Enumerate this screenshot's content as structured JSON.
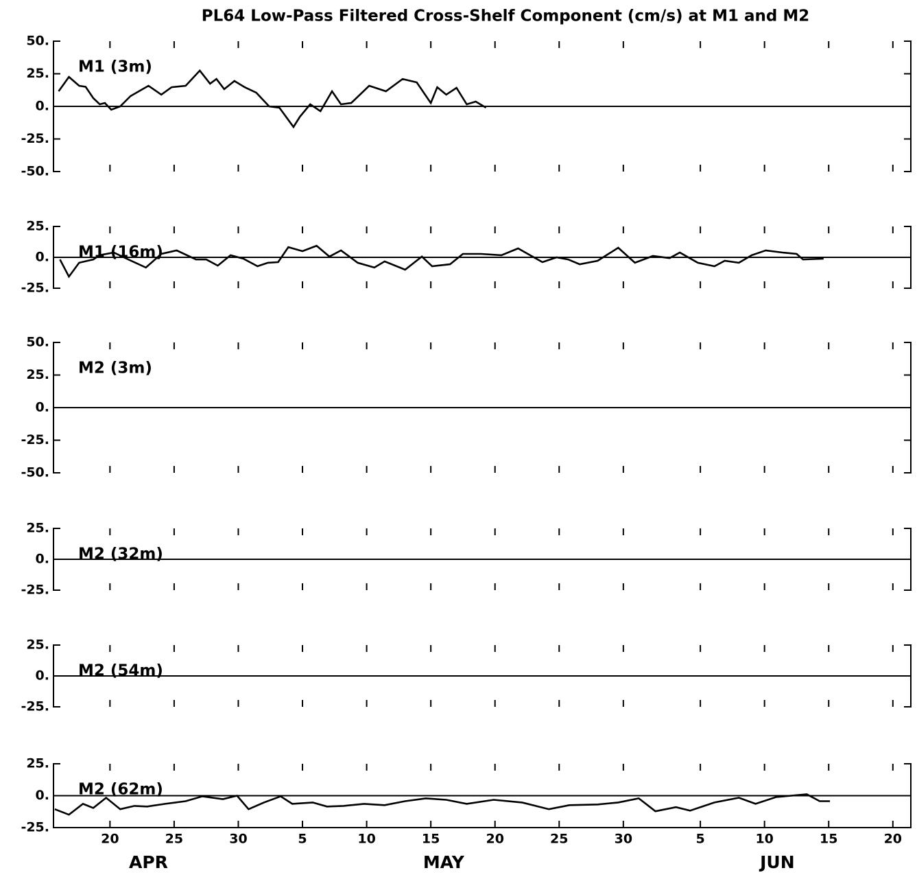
{
  "title": "PL64 Low-Pass Filtered Cross-Shelf Component (cm/s) at M1 and M2",
  "x_axis": {
    "xlim": [
      15.6,
      82.4
    ],
    "xticks": [
      20,
      25,
      30,
      {
        "value": 35,
        "label": "5"
      },
      {
        "value": 40,
        "label": "10"
      },
      {
        "value": 45,
        "label": "15"
      },
      {
        "value": 50,
        "label": "20"
      },
      {
        "value": 55,
        "label": "25"
      },
      {
        "value": 60,
        "label": "30"
      },
      {
        "value": 66,
        "label": "5"
      },
      {
        "value": 71,
        "label": "10"
      },
      {
        "value": 76,
        "label": "15"
      },
      {
        "value": 81,
        "label": "20"
      }
    ],
    "month_labels": [
      {
        "text": "APR",
        "x": 23
      },
      {
        "text": "MAY",
        "x": 46
      },
      {
        "text": "JUN",
        "x": 72
      }
    ]
  },
  "chart_data": [
    {
      "type": "line",
      "title": "M1 (3m)",
      "color": "#000000",
      "ylim": [
        -50,
        50
      ],
      "yticks": [
        {
          "value": 50,
          "label": "50."
        },
        {
          "value": 25,
          "label": "25."
        },
        {
          "value": 0,
          "label": "0."
        },
        {
          "value": -25,
          "label": "-25."
        },
        {
          "value": -50,
          "label": "-50."
        }
      ],
      "x": [
        16.0,
        16.8,
        17.6,
        18.1,
        18.7,
        19.2,
        19.6,
        20.1,
        20.8,
        21.6,
        23.0,
        24.0,
        24.8,
        25.9,
        27.0,
        27.8,
        28.3,
        28.9,
        29.7,
        30.5,
        31.4,
        32.4,
        33.2,
        34.3,
        34.8,
        35.6,
        36.4,
        37.3,
        38.0,
        38.8,
        40.2,
        41.5,
        42.8,
        43.9,
        45.0,
        45.5,
        46.2,
        47.0,
        47.8,
        48.5,
        49.3
      ],
      "values": [
        11.6,
        22.6,
        15.8,
        15,
        6.3,
        1.6,
        2.6,
        -2.6,
        0,
        7.9,
        15.8,
        9,
        14.7,
        15.8,
        27.4,
        17.4,
        21,
        13.2,
        19.5,
        14.7,
        10.5,
        0,
        -1,
        -15.8,
        -7.9,
        1.6,
        -3.7,
        11.6,
        1.6,
        2.6,
        15.8,
        11.6,
        21,
        18.4,
        2.6,
        14.7,
        9,
        14.2,
        1.6,
        3.7,
        -1
      ]
    },
    {
      "type": "line",
      "title": "M1 (16m)",
      "color": "#000000",
      "ylim": [
        -25,
        25
      ],
      "yticks": [
        {
          "value": 25,
          "label": "25."
        },
        {
          "value": 0,
          "label": "0."
        },
        {
          "value": -25,
          "label": "-25."
        }
      ],
      "x": [
        16.1,
        16.8,
        17.6,
        18.7,
        19.2,
        20.3,
        21.3,
        22.8,
        24.0,
        25.2,
        26.7,
        27.5,
        28.4,
        29.4,
        30.4,
        31.5,
        32.3,
        33.1,
        33.9,
        35.0,
        36.1,
        37.1,
        38.0,
        39.3,
        40.6,
        41.4,
        43.0,
        44.3,
        45.1,
        46.5,
        47.5,
        48.9,
        50.5,
        51.8,
        53.7,
        54.8,
        55.7,
        56.6,
        58.0,
        59.6,
        60.9,
        62.3,
        63.6,
        64.4,
        65.8,
        67.1,
        67.9,
        69.0,
        70.0,
        71.1,
        72.4,
        73.5,
        74.0,
        75.6
      ],
      "values": [
        -1.7,
        -15.6,
        -4.4,
        -1.7,
        1.7,
        3.9,
        -1.1,
        -8.3,
        2.8,
        5.6,
        -1.7,
        -1.7,
        -6.7,
        1.7,
        -1.1,
        -7.2,
        -4.4,
        -3.9,
        8.3,
        5,
        9.4,
        0.6,
        5.6,
        -4.4,
        -8.3,
        -3.3,
        -10,
        0.6,
        -7.2,
        -5.6,
        2.8,
        2.8,
        1.7,
        7.2,
        -3.9,
        0,
        -1.7,
        -5.6,
        -2.8,
        7.8,
        -4.4,
        1.1,
        -0.6,
        3.9,
        -4.4,
        -7.2,
        -2.8,
        -4.4,
        1.7,
        5.6,
        3.9,
        2.8,
        -1.7,
        -1.1
      ]
    },
    {
      "type": "line",
      "title": "M2 (3m)",
      "color": "#000000",
      "ylim": [
        -50,
        50
      ],
      "yticks": [
        {
          "value": 50,
          "label": "50."
        },
        {
          "value": 25,
          "label": "25."
        },
        {
          "value": 0,
          "label": "0."
        },
        {
          "value": -25,
          "label": "-25."
        },
        {
          "value": -50,
          "label": "-50."
        }
      ],
      "x": [],
      "values": []
    },
    {
      "type": "line",
      "title": "M2 (32m)",
      "color": "#000000",
      "ylim": [
        -25,
        25
      ],
      "yticks": [
        {
          "value": 25,
          "label": "25."
        },
        {
          "value": 0,
          "label": "0."
        },
        {
          "value": -25,
          "label": "-25."
        }
      ],
      "x": [],
      "values": []
    },
    {
      "type": "line",
      "title": "M2 (54m)",
      "color": "#000000",
      "ylim": [
        -25,
        25
      ],
      "yticks": [
        {
          "value": 25,
          "label": "25."
        },
        {
          "value": 0,
          "label": "0."
        },
        {
          "value": -25,
          "label": "-25."
        }
      ],
      "x": [],
      "values": []
    },
    {
      "type": "line",
      "title": "M2 (62m)",
      "color": "#000000",
      "ylim": [
        -25,
        25
      ],
      "yticks": [
        {
          "value": 25,
          "label": "25."
        },
        {
          "value": 0,
          "label": "0."
        },
        {
          "value": -25,
          "label": "-25."
        }
      ],
      "x": [
        15.7,
        16.8,
        17.9,
        18.7,
        19.7,
        20.8,
        21.9,
        22.9,
        24.3,
        25.9,
        27.2,
        28.8,
        29.9,
        30.8,
        32.0,
        33.3,
        34.2,
        35.8,
        36.9,
        38.2,
        39.8,
        41.4,
        43.0,
        44.6,
        46.2,
        47.8,
        49.9,
        52.1,
        54.2,
        55.8,
        58.0,
        59.6,
        61.2,
        62.5,
        64.1,
        65.2,
        67.1,
        69.0,
        70.3,
        71.9,
        74.3,
        75.3,
        76.1
      ],
      "values": [
        -10.6,
        -14.9,
        -6.4,
        -9.6,
        -1.6,
        -10.6,
        -8,
        -8.5,
        -6.4,
        -4.3,
        -0.5,
        -2.7,
        0,
        -10.6,
        -5.3,
        -0.5,
        -6.4,
        -5.3,
        -8.5,
        -8,
        -6.4,
        -7.4,
        -4.3,
        -2.1,
        -3.2,
        -6.4,
        -3.2,
        -5.3,
        -10.6,
        -7.4,
        -6.9,
        -5.3,
        -2.1,
        -12.2,
        -9,
        -11.7,
        -5.3,
        -1.6,
        -6.4,
        -1.1,
        1.1,
        -4.3,
        -4.3
      ]
    }
  ]
}
